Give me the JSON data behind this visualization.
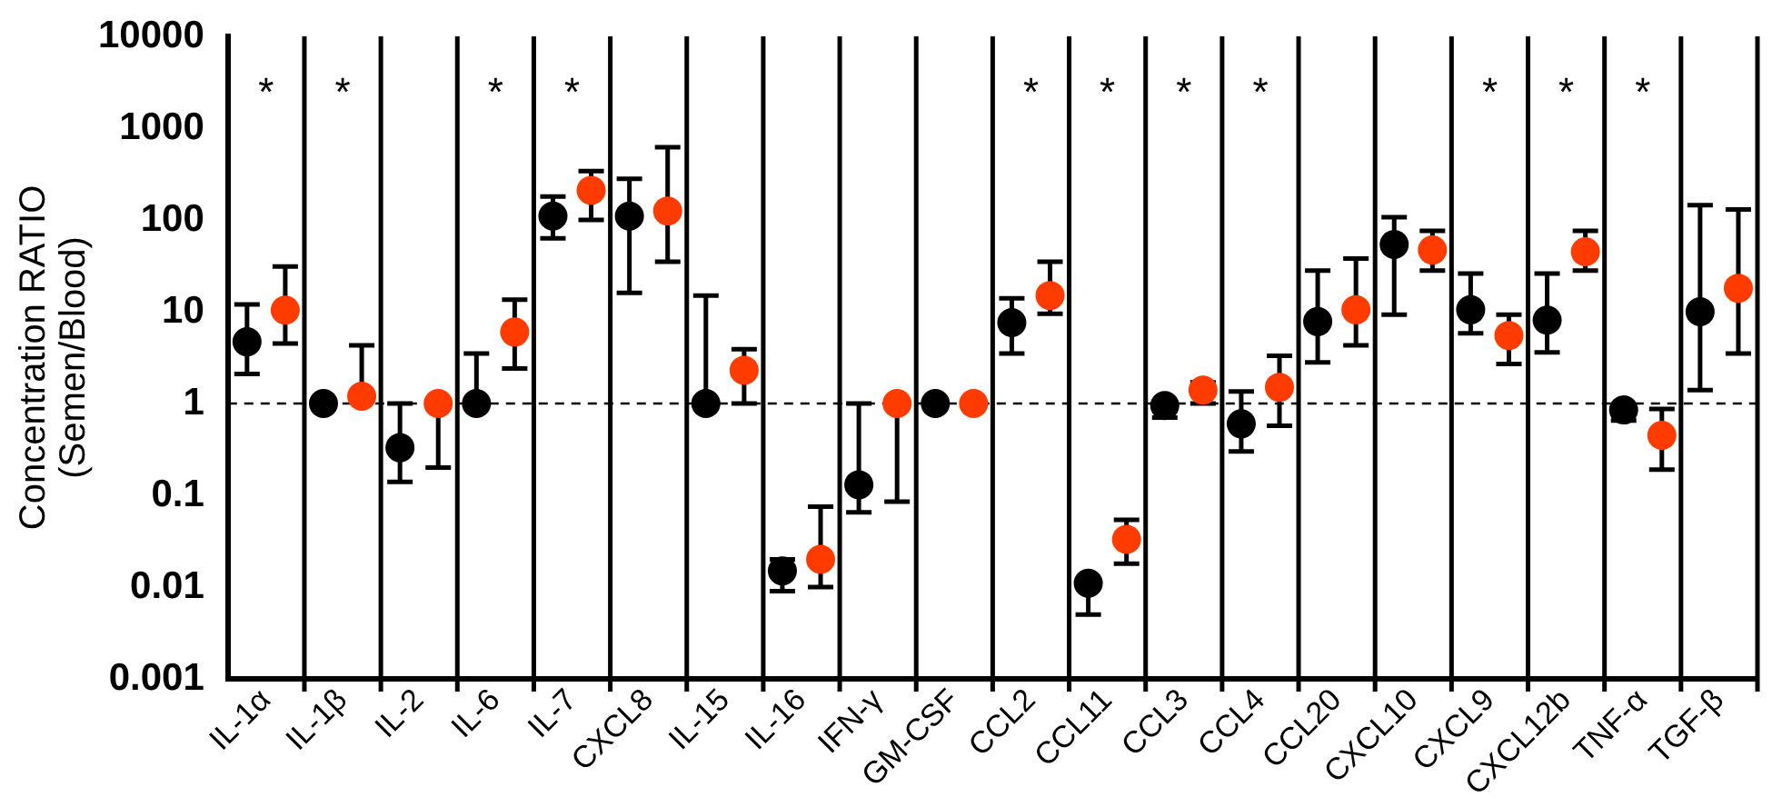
{
  "chart_data": {
    "type": "scatter",
    "ylabel": "Concentration RATIO\n(Semen/Blood)",
    "categories": [
      "IL-1α",
      "IL-1β",
      "IL-2",
      "IL-6",
      "IL-7",
      "CXCL8",
      "IL-15",
      "IL-16",
      "IFN-γ",
      "GM-CSF",
      "CCL2",
      "CCL11",
      "CCL3",
      "CCL4",
      "CCL20",
      "CXCL10",
      "CXCL9",
      "CXCL12b",
      "TNF-α",
      "TGF-β"
    ],
    "series": [
      {
        "color": "#000000",
        "values": [
          4.7,
          1,
          0.33,
          1,
          110,
          110,
          1,
          0.015,
          0.13,
          1,
          7.6,
          0.011,
          0.95,
          0.6,
          7.8,
          54,
          10.5,
          8.1,
          0.85,
          10
        ],
        "errors": [
          [
            2.1,
            12
          ],
          null,
          [
            0.14,
            1
          ],
          [
            1,
            3.5
          ],
          [
            63,
            180
          ],
          [
            16,
            280
          ],
          [
            1,
            15
          ],
          [
            0.009,
            0.02
          ],
          [
            0.065,
            1
          ],
          null,
          [
            3.5,
            14
          ],
          [
            0.005,
            0.011
          ],
          [
            0.7,
            0.95
          ],
          [
            0.3,
            1.35
          ],
          [
            2.8,
            28
          ],
          [
            9.3,
            107
          ],
          [
            5.8,
            26
          ],
          [
            3.6,
            26
          ],
          [
            0.65,
            0.85
          ],
          [
            1.4,
            145
          ]
        ]
      },
      {
        "color": "#ff3b00",
        "values": [
          10.4,
          1.2,
          1,
          6,
          210,
          125,
          2.3,
          0.02,
          1,
          1,
          15,
          0.033,
          1.4,
          1.5,
          10.5,
          47,
          5.5,
          45,
          0.45,
          18
        ],
        "errors": [
          [
            4.5,
            31
          ],
          [
            1.2,
            4.3
          ],
          [
            0.2,
            1
          ],
          [
            2.4,
            13.5
          ],
          [
            100,
            340
          ],
          [
            35,
            620
          ],
          [
            1,
            3.9
          ],
          [
            0.01,
            0.075
          ],
          [
            0.085,
            1
          ],
          null,
          [
            9.5,
            35
          ],
          [
            0.018,
            0.054
          ],
          [
            1,
            1.7
          ],
          [
            0.57,
            3.3
          ],
          [
            4.3,
            38
          ],
          [
            28,
            76
          ],
          [
            2.7,
            9.3
          ],
          [
            28,
            76
          ],
          [
            0.19,
            0.87
          ],
          [
            3.5,
            130
          ]
        ]
      }
    ],
    "ylim": [
      0.001,
      10000
    ],
    "yticks": [
      0.001,
      0.01,
      0.1,
      1,
      10,
      100,
      1000,
      10000
    ],
    "log": true,
    "grid": "x",
    "legend": false,
    "marker": "circle",
    "ref_lines": [
      {
        "axis": "y",
        "value": 1,
        "color": "#000000",
        "line_style": "dashed"
      }
    ],
    "annotations": [
      "*",
      "*",
      "*",
      "*",
      "*",
      "*",
      "*",
      "*",
      "*",
      "*",
      "*"
    ]
  }
}
